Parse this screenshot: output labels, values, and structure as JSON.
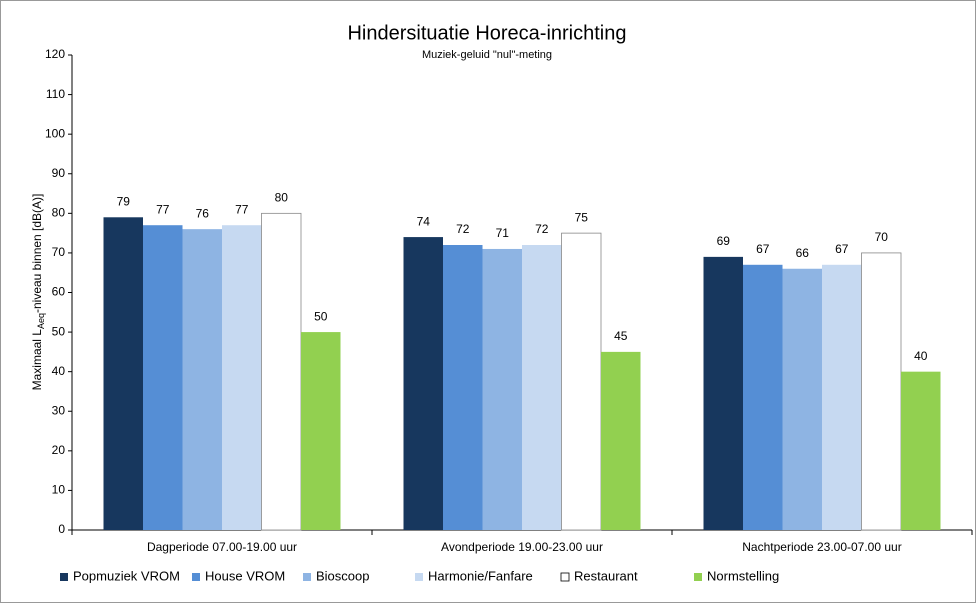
{
  "chart_data": {
    "type": "bar",
    "title": "Hindersituatie Horeca-inrichting",
    "subtitle": "Muziek-geluid \"nul\"-meting",
    "y_label": [
      "Maximaal L",
      "Aeq",
      "-niveau binnen [dB(A)]"
    ],
    "categories": [
      "Dagperiode 07.00-19.00 uur",
      "Avondperiode 19.00-23.00 uur",
      "Nachtperiode 23.00-07.00 uur"
    ],
    "series": [
      {
        "name": "Popmuziek VROM",
        "color": "#17375e",
        "values": [
          79,
          74,
          69
        ]
      },
      {
        "name": "House VROM",
        "color": "#558ed5",
        "values": [
          77,
          72,
          67
        ]
      },
      {
        "name": "Bioscoop",
        "color": "#8eb4e3",
        "values": [
          76,
          71,
          66
        ]
      },
      {
        "name": "Harmonie/Fanfare",
        "color": "#c6d9f1",
        "values": [
          77,
          72,
          67
        ]
      },
      {
        "name": "Restaurant",
        "color": "#ffffff",
        "values": [
          80,
          75,
          70
        ]
      },
      {
        "name": "Normstelling",
        "color": "#92d050",
        "values": [
          50,
          45,
          40
        ]
      }
    ],
    "ylim": [
      0,
      120
    ],
    "yticks": [
      0,
      10,
      20,
      30,
      40,
      50,
      60,
      70,
      80,
      90,
      100,
      110,
      120
    ],
    "grid": false,
    "legend": "bottom"
  }
}
